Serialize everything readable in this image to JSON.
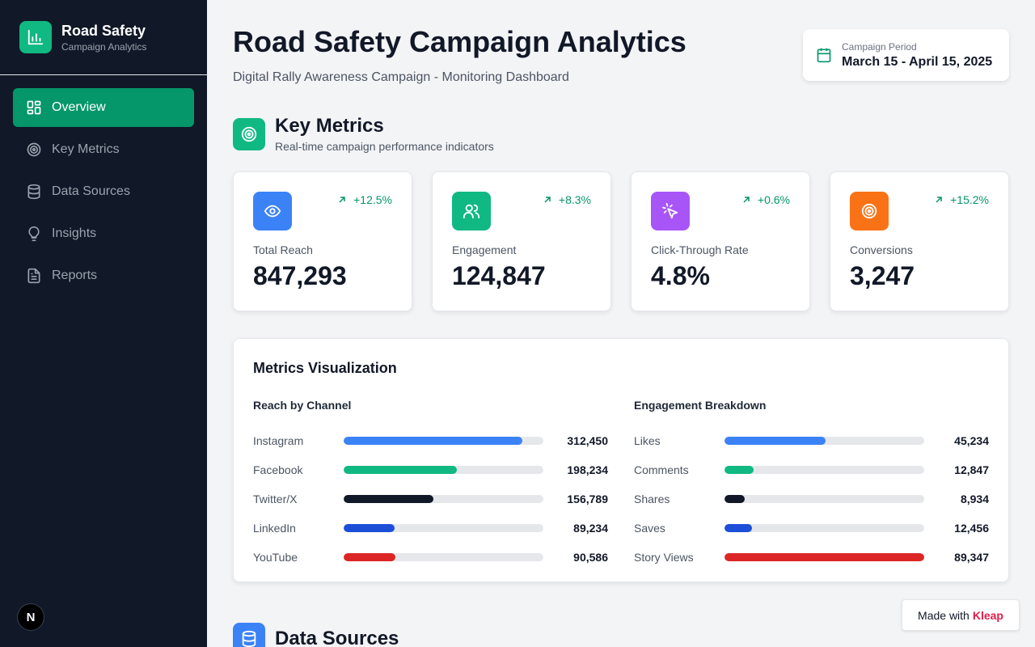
{
  "sidebar": {
    "title": "Road Safety",
    "subtitle": "Campaign Analytics",
    "items": [
      {
        "label": "Overview",
        "icon": "grid-icon",
        "active": true
      },
      {
        "label": "Key Metrics",
        "icon": "target-icon"
      },
      {
        "label": "Data Sources",
        "icon": "database-icon"
      },
      {
        "label": "Insights",
        "icon": "lightbulb-icon"
      },
      {
        "label": "Reports",
        "icon": "document-icon"
      }
    ],
    "badge": "N"
  },
  "header": {
    "title": "Road Safety Campaign Analytics",
    "subtitle": "Digital Rally Awareness Campaign - Monitoring Dashboard",
    "period_label": "Campaign Period",
    "period_value": "March 15 - April 15, 2025"
  },
  "key_metrics": {
    "title": "Key Metrics",
    "subtitle": "Real-time campaign performance indicators",
    "cards": [
      {
        "label": "Total Reach",
        "value": "847,293",
        "change": "+12.5%",
        "icon": "eye-icon",
        "color": "#3b82f6"
      },
      {
        "label": "Engagement",
        "value": "124,847",
        "change": "+8.3%",
        "icon": "users-icon",
        "color": "#10b981"
      },
      {
        "label": "Click-Through Rate",
        "value": "4.8%",
        "change": "+0.6%",
        "icon": "cursor-click-icon",
        "color": "#a855f7"
      },
      {
        "label": "Conversions",
        "value": "3,247",
        "change": "+15.2%",
        "icon": "target-icon",
        "color": "#f97316"
      }
    ]
  },
  "visualization": {
    "title": "Metrics Visualization",
    "reach": {
      "title": "Reach by Channel",
      "rows": [
        {
          "label": "Instagram",
          "value": "312,450",
          "fraction": 0.895,
          "color": "#3b82f6"
        },
        {
          "label": "Facebook",
          "value": "198,234",
          "fraction": 0.567,
          "color": "#10b981"
        },
        {
          "label": "Twitter/X",
          "value": "156,789",
          "fraction": 0.449,
          "color": "#111827"
        },
        {
          "label": "LinkedIn",
          "value": "89,234",
          "fraction": 0.255,
          "color": "#1d4ed8"
        },
        {
          "label": "YouTube",
          "value": "90,586",
          "fraction": 0.259,
          "color": "#dc2626"
        }
      ]
    },
    "engagement": {
      "title": "Engagement Breakdown",
      "rows": [
        {
          "label": "Likes",
          "value": "45,234",
          "fraction": 0.506,
          "color": "#3b82f6"
        },
        {
          "label": "Comments",
          "value": "12,847",
          "fraction": 0.144,
          "color": "#10b981"
        },
        {
          "label": "Shares",
          "value": "8,934",
          "fraction": 0.1,
          "color": "#111827"
        },
        {
          "label": "Saves",
          "value": "12,456",
          "fraction": 0.139,
          "color": "#1d4ed8"
        },
        {
          "label": "Story Views",
          "value": "89,347",
          "fraction": 1.0,
          "color": "#dc2626"
        }
      ]
    }
  },
  "data_sources": {
    "title": "Data Sources"
  },
  "made_with": {
    "prefix": "Made with",
    "brand": "Kleap"
  }
}
